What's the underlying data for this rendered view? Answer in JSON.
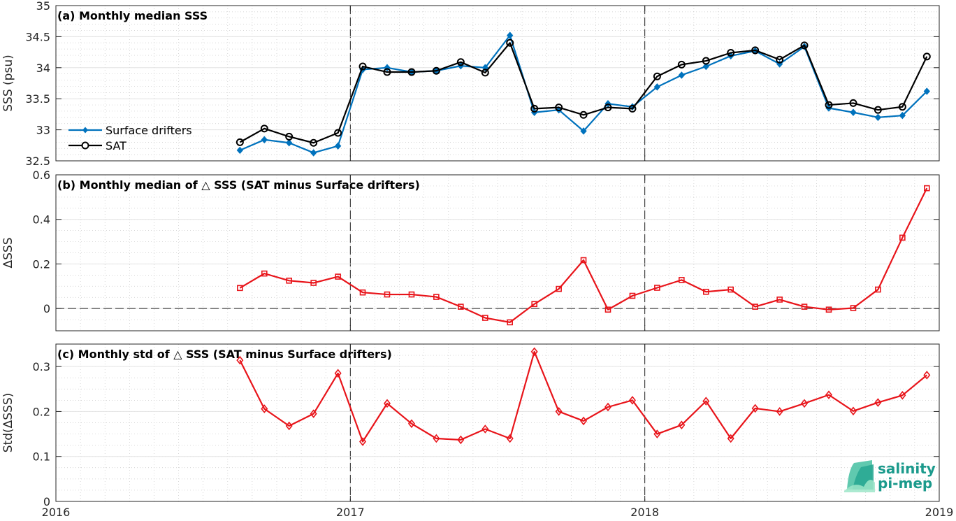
{
  "colors": {
    "drifters": "#0072BD",
    "sat": "#000000",
    "delta": "#E8141A",
    "logo": "#1b9a8c"
  },
  "logo": {
    "line1": "salinity",
    "line2": "pi-mep"
  },
  "chart_data": [
    {
      "type": "line",
      "title": "(a) Monthly median SSS",
      "xlabel": "",
      "ylabel": "SSS (psu)",
      "xlim": [
        2016,
        2019
      ],
      "ylim": [
        32.5,
        35
      ],
      "xticks": [
        "2016",
        "2017",
        "2018",
        "2019"
      ],
      "yticks": [
        "32.5",
        "33",
        "33.5",
        "34",
        "34.5",
        "35"
      ],
      "grid": true,
      "legend": "left",
      "x": [
        2016.625,
        2016.708,
        2016.792,
        2016.875,
        2016.958,
        2017.042,
        2017.125,
        2017.208,
        2017.292,
        2017.375,
        2017.458,
        2017.542,
        2017.625,
        2017.708,
        2017.792,
        2017.875,
        2017.958,
        2018.042,
        2018.125,
        2018.208,
        2018.292,
        2018.375,
        2018.458,
        2018.542,
        2018.625,
        2018.708,
        2018.792,
        2018.875,
        2018.958
      ],
      "series": [
        {
          "name": "Surface drifters",
          "marker": "diamond-filled",
          "values": [
            32.67,
            32.84,
            32.79,
            32.63,
            32.74,
            33.97,
            34.0,
            33.93,
            33.95,
            34.03,
            34.0,
            34.52,
            33.28,
            33.32,
            32.98,
            33.42,
            33.37,
            33.69,
            33.88,
            34.02,
            34.19,
            34.27,
            34.06,
            34.34,
            33.35,
            33.28,
            33.2,
            33.23,
            33.62
          ]
        },
        {
          "name": "SAT",
          "marker": "circle-open",
          "values": [
            32.8,
            33.02,
            32.89,
            32.79,
            32.95,
            34.02,
            33.93,
            33.93,
            33.95,
            34.09,
            33.92,
            34.4,
            33.34,
            33.36,
            33.24,
            33.36,
            33.34,
            33.86,
            34.05,
            34.11,
            34.24,
            34.28,
            34.13,
            34.36,
            33.4,
            33.43,
            33.32,
            33.37,
            34.18
          ]
        }
      ]
    },
    {
      "type": "line",
      "title": "(b) Monthly median of △ SSS (SAT minus Surface drifters)",
      "xlabel": "",
      "ylabel": "ΔSSS",
      "xlim": [
        2016,
        2019
      ],
      "ylim": [
        -0.1,
        0.6
      ],
      "yticks": [
        "0",
        "0.2",
        "0.4",
        "0.6"
      ],
      "grid": true,
      "x": [
        2016.625,
        2016.708,
        2016.792,
        2016.875,
        2016.958,
        2017.042,
        2017.125,
        2017.208,
        2017.292,
        2017.375,
        2017.458,
        2017.542,
        2017.625,
        2017.708,
        2017.792,
        2017.875,
        2017.958,
        2018.042,
        2018.125,
        2018.208,
        2018.292,
        2018.375,
        2018.458,
        2018.542,
        2018.625,
        2018.708,
        2018.792,
        2018.875,
        2018.958
      ],
      "series": [
        {
          "marker": "square-open",
          "values": [
            0.092,
            0.157,
            0.125,
            0.115,
            0.143,
            0.072,
            0.063,
            0.063,
            0.052,
            0.008,
            -0.042,
            -0.062,
            0.02,
            0.088,
            0.217,
            -0.005,
            0.057,
            0.093,
            0.128,
            0.075,
            0.085,
            0.008,
            0.04,
            0.008,
            -0.005,
            0.002,
            0.085,
            0.318,
            0.54
          ]
        }
      ]
    },
    {
      "type": "line",
      "title": "(c) Monthly std of △ SSS (SAT minus Surface drifters)",
      "xlabel": "",
      "ylabel": "Std(ΔSSS)",
      "xlim": [
        2016,
        2019
      ],
      "ylim": [
        0,
        0.35
      ],
      "yticks": [
        "0",
        "0.1",
        "0.2",
        "0.3"
      ],
      "grid": true,
      "x": [
        2016.625,
        2016.708,
        2016.792,
        2016.875,
        2016.958,
        2017.042,
        2017.125,
        2017.208,
        2017.292,
        2017.375,
        2017.458,
        2017.542,
        2017.625,
        2017.708,
        2017.792,
        2017.875,
        2017.958,
        2018.042,
        2018.125,
        2018.208,
        2018.292,
        2018.375,
        2018.458,
        2018.542,
        2018.625,
        2018.708,
        2018.792,
        2018.875,
        2018.958
      ],
      "series": [
        {
          "marker": "diamond-open",
          "values": [
            0.314,
            0.206,
            0.168,
            0.195,
            0.285,
            0.133,
            0.218,
            0.173,
            0.14,
            0.137,
            0.161,
            0.14,
            0.333,
            0.2,
            0.179,
            0.21,
            0.225,
            0.15,
            0.17,
            0.223,
            0.14,
            0.207,
            0.2,
            0.218,
            0.237,
            0.201,
            0.22,
            0.236,
            0.281
          ]
        }
      ]
    }
  ]
}
